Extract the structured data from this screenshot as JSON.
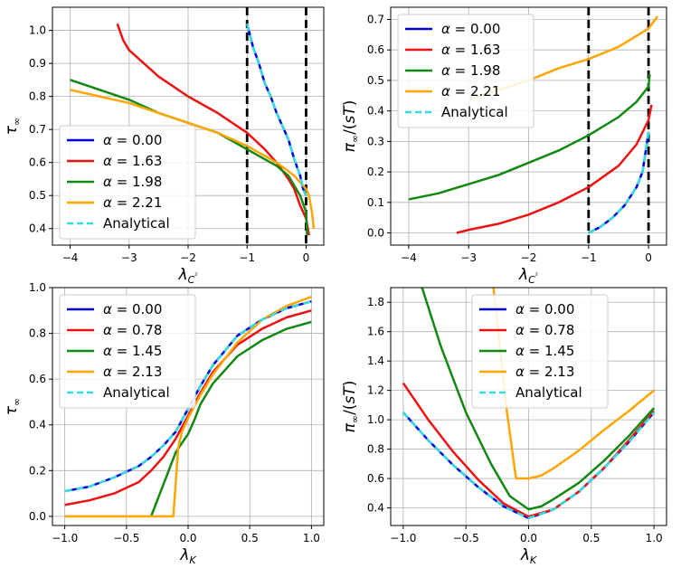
{
  "figure": {
    "layout": "2x2 grid of line charts"
  },
  "chart_data": [
    {
      "type": "line",
      "title": "",
      "xlabel": "λ_{C²}",
      "ylabel": "τ_∞",
      "xlim": [
        -4.3,
        0.3
      ],
      "ylim": [
        0.35,
        1.07
      ],
      "xticks": [
        -4,
        -3,
        -2,
        -1,
        0
      ],
      "xtick_labels": [
        "−4",
        "−3",
        "−2",
        "−1",
        "0"
      ],
      "yticks": [
        0.4,
        0.5,
        0.6,
        0.7,
        0.8,
        0.9,
        1.0
      ],
      "ytick_labels": [
        "0.4",
        "0.5",
        "0.6",
        "0.7",
        "0.8",
        "0.9",
        "1.0"
      ],
      "grid": true,
      "legend_position": "lower-left",
      "vlines": [
        -1,
        0
      ],
      "series": [
        {
          "name": "α = 0.00",
          "color": "#0000dd",
          "dash": "solid",
          "x": [
            -1.0,
            -0.9,
            -0.8,
            -0.7,
            -0.6,
            -0.5,
            -0.4,
            -0.3,
            -0.2,
            -0.1,
            -0.05,
            0.0
          ],
          "y": [
            1.02,
            0.95,
            0.9,
            0.84,
            0.8,
            0.75,
            0.71,
            0.67,
            0.61,
            0.56,
            0.52,
            0.5
          ]
        },
        {
          "name": "α = 1.63",
          "color": "#ee1111",
          "dash": "solid",
          "x": [
            -3.2,
            -3.1,
            -3.0,
            -2.5,
            -2.0,
            -1.5,
            -1.0,
            -0.7,
            -0.5,
            -0.3,
            -0.2,
            -0.1,
            0.0,
            0.05
          ],
          "y": [
            1.02,
            0.97,
            0.94,
            0.86,
            0.8,
            0.75,
            0.69,
            0.64,
            0.6,
            0.55,
            0.52,
            0.47,
            0.43,
            0.38
          ]
        },
        {
          "name": "α = 1.98",
          "color": "#118811",
          "dash": "solid",
          "x": [
            -4.0,
            -3.5,
            -3.0,
            -2.5,
            -2.0,
            -1.5,
            -1.0,
            -0.7,
            -0.5,
            -0.3,
            -0.2,
            -0.1,
            0.0,
            0.02
          ],
          "y": [
            0.85,
            0.82,
            0.79,
            0.75,
            0.72,
            0.69,
            0.64,
            0.61,
            0.59,
            0.56,
            0.53,
            0.5,
            0.45,
            0.38
          ]
        },
        {
          "name": "α = 2.21",
          "color": "#ffa500",
          "dash": "solid",
          "x": [
            -4.0,
            -3.5,
            -3.0,
            -2.5,
            -2.0,
            -1.5,
            -1.0,
            -0.5,
            -0.2,
            0.0,
            0.05,
            0.1,
            0.13
          ],
          "y": [
            0.82,
            0.8,
            0.78,
            0.75,
            0.72,
            0.69,
            0.65,
            0.6,
            0.56,
            0.52,
            0.5,
            0.45,
            0.4
          ]
        },
        {
          "name": "Analytical",
          "color": "#33dddd",
          "dash": "dashed",
          "x": [
            -1.0,
            -0.9,
            -0.8,
            -0.7,
            -0.6,
            -0.5,
            -0.4,
            -0.3,
            -0.2,
            -0.1,
            -0.05,
            0.0
          ],
          "y": [
            1.02,
            0.95,
            0.9,
            0.84,
            0.8,
            0.75,
            0.71,
            0.67,
            0.61,
            0.56,
            0.52,
            0.5
          ]
        }
      ]
    },
    {
      "type": "line",
      "title": "",
      "xlabel": "λ_{C²}",
      "ylabel": "π_∞/(sT)",
      "xlim": [
        -4.3,
        0.3
      ],
      "ylim": [
        -0.04,
        0.74
      ],
      "xticks": [
        -4,
        -3,
        -2,
        -1,
        0
      ],
      "xtick_labels": [
        "−4",
        "−3",
        "−2",
        "−1",
        "0"
      ],
      "yticks": [
        0.0,
        0.1,
        0.2,
        0.3,
        0.4,
        0.5,
        0.6,
        0.7
      ],
      "ytick_labels": [
        "0.0",
        "0.1",
        "0.2",
        "0.3",
        "0.4",
        "0.5",
        "0.6",
        "0.7"
      ],
      "grid": true,
      "legend_position": "upper-left",
      "vlines": [
        -1,
        0
      ],
      "series": [
        {
          "name": "α = 0.00",
          "color": "#0000dd",
          "dash": "solid",
          "x": [
            -1.0,
            -0.8,
            -0.6,
            -0.4,
            -0.2,
            -0.1,
            0.0
          ],
          "y": [
            0.0,
            0.02,
            0.05,
            0.09,
            0.15,
            0.2,
            0.33
          ]
        },
        {
          "name": "α = 1.63",
          "color": "#ee1111",
          "dash": "solid",
          "x": [
            -3.2,
            -3.0,
            -2.5,
            -2.0,
            -1.5,
            -1.0,
            -0.5,
            -0.2,
            0.0,
            0.05
          ],
          "y": [
            0.0,
            0.01,
            0.03,
            0.06,
            0.1,
            0.15,
            0.22,
            0.29,
            0.37,
            0.42
          ]
        },
        {
          "name": "α = 1.98",
          "color": "#118811",
          "dash": "solid",
          "x": [
            -4.0,
            -3.5,
            -3.0,
            -2.5,
            -2.0,
            -1.5,
            -1.0,
            -0.5,
            -0.2,
            0.0,
            0.02
          ],
          "y": [
            0.11,
            0.13,
            0.16,
            0.19,
            0.23,
            0.27,
            0.32,
            0.38,
            0.43,
            0.48,
            0.52
          ]
        },
        {
          "name": "α = 2.21",
          "color": "#ffa500",
          "dash": "solid",
          "x": [
            -3.0,
            -2.5,
            -2.0,
            -1.5,
            -1.0,
            -0.5,
            0.0,
            0.15
          ],
          "y": [
            0.44,
            0.47,
            0.5,
            0.54,
            0.57,
            0.61,
            0.67,
            0.71
          ]
        },
        {
          "name": "Analytical",
          "color": "#33dddd",
          "dash": "dashed",
          "x": [
            -1.0,
            -0.8,
            -0.6,
            -0.4,
            -0.2,
            -0.1,
            0.0
          ],
          "y": [
            0.0,
            0.02,
            0.05,
            0.09,
            0.15,
            0.2,
            0.33
          ]
        }
      ]
    },
    {
      "type": "line",
      "title": "",
      "xlabel": "λ_K",
      "ylabel": "τ_∞",
      "xlim": [
        -1.1,
        1.1
      ],
      "ylim": [
        -0.04,
        1.0
      ],
      "xticks": [
        -1.0,
        -0.5,
        0.0,
        0.5,
        1.0
      ],
      "xtick_labels": [
        "−1.0",
        "−0.5",
        "0.0",
        "0.5",
        "1.0"
      ],
      "yticks": [
        0.0,
        0.2,
        0.4,
        0.6,
        0.8,
        1.0
      ],
      "ytick_labels": [
        "0.0",
        "0.2",
        "0.4",
        "0.6",
        "0.8",
        "1.0"
      ],
      "grid": true,
      "legend_position": "upper-left",
      "vlines": [],
      "series": [
        {
          "name": "α = 0.00",
          "color": "#0000dd",
          "dash": "solid",
          "x": [
            -1.0,
            -0.8,
            -0.6,
            -0.4,
            -0.3,
            -0.2,
            -0.1,
            0.0,
            0.1,
            0.2,
            0.4,
            0.6,
            0.8,
            1.0
          ],
          "y": [
            0.11,
            0.13,
            0.17,
            0.22,
            0.26,
            0.31,
            0.37,
            0.47,
            0.57,
            0.66,
            0.79,
            0.86,
            0.91,
            0.94
          ]
        },
        {
          "name": "α = 0.78",
          "color": "#ee1111",
          "dash": "solid",
          "x": [
            -1.0,
            -0.8,
            -0.6,
            -0.4,
            -0.3,
            -0.2,
            -0.1,
            0.0,
            0.1,
            0.2,
            0.4,
            0.6,
            0.8,
            1.0
          ],
          "y": [
            0.05,
            0.07,
            0.1,
            0.15,
            0.2,
            0.26,
            0.34,
            0.44,
            0.54,
            0.63,
            0.75,
            0.82,
            0.87,
            0.9
          ]
        },
        {
          "name": "α = 1.45",
          "color": "#118811",
          "dash": "solid",
          "x": [
            -0.3,
            -0.2,
            -0.1,
            -0.05,
            0.0,
            0.05,
            0.1,
            0.2,
            0.4,
            0.6,
            0.8,
            1.0
          ],
          "y": [
            0.0,
            0.14,
            0.28,
            0.32,
            0.36,
            0.42,
            0.49,
            0.58,
            0.7,
            0.77,
            0.82,
            0.85
          ]
        },
        {
          "name": "α = 2.13",
          "color": "#ffa500",
          "dash": "solid",
          "x": [
            -1.0,
            -0.5,
            -0.12,
            -0.1,
            -0.08,
            -0.05,
            0.0,
            0.1,
            0.2,
            0.4,
            0.6,
            0.8,
            1.0
          ],
          "y": [
            0.0,
            0.0,
            0.0,
            0.15,
            0.3,
            0.37,
            0.43,
            0.53,
            0.62,
            0.76,
            0.86,
            0.92,
            0.96
          ]
        },
        {
          "name": "Analytical",
          "color": "#33dddd",
          "dash": "dashed",
          "x": [
            -1.0,
            -0.8,
            -0.6,
            -0.4,
            -0.3,
            -0.2,
            -0.1,
            0.0,
            0.1,
            0.2,
            0.4,
            0.6,
            0.8,
            1.0
          ],
          "y": [
            0.11,
            0.13,
            0.17,
            0.22,
            0.26,
            0.31,
            0.37,
            0.47,
            0.57,
            0.66,
            0.79,
            0.86,
            0.91,
            0.94
          ]
        }
      ]
    },
    {
      "type": "line",
      "title": "",
      "xlabel": "λ_K",
      "ylabel": "π_∞/(sT)",
      "xlim": [
        -1.1,
        1.1
      ],
      "ylim": [
        0.28,
        1.9
      ],
      "xticks": [
        -1.0,
        -0.5,
        0.0,
        0.5,
        1.0
      ],
      "xtick_labels": [
        "−1.0",
        "−0.5",
        "0.0",
        "0.5",
        "1.0"
      ],
      "yticks": [
        0.4,
        0.6,
        0.8,
        1.0,
        1.2,
        1.4,
        1.6,
        1.8
      ],
      "ytick_labels": [
        "0.4",
        "0.6",
        "0.8",
        "1.0",
        "1.2",
        "1.4",
        "1.6",
        "1.8"
      ],
      "grid": true,
      "legend_position": "upper-center",
      "vlines": [],
      "series": [
        {
          "name": "α = 0.00",
          "color": "#0000dd",
          "dash": "solid",
          "x": [
            -1.0,
            -0.8,
            -0.6,
            -0.4,
            -0.2,
            0.0,
            0.2,
            0.4,
            0.6,
            0.8,
            1.0
          ],
          "y": [
            1.05,
            0.86,
            0.69,
            0.54,
            0.41,
            0.33,
            0.39,
            0.51,
            0.67,
            0.85,
            1.05
          ]
        },
        {
          "name": "α = 0.78",
          "color": "#ee1111",
          "dash": "solid",
          "x": [
            -1.0,
            -0.8,
            -0.6,
            -0.4,
            -0.2,
            0.0,
            0.2,
            0.4,
            0.6,
            0.8,
            1.0
          ],
          "y": [
            1.25,
            1.0,
            0.78,
            0.59,
            0.43,
            0.34,
            0.39,
            0.51,
            0.67,
            0.86,
            1.06
          ]
        },
        {
          "name": "α = 1.45",
          "color": "#118811",
          "dash": "solid",
          "x": [
            -0.85,
            -0.7,
            -0.5,
            -0.3,
            -0.15,
            0.0,
            0.1,
            0.2,
            0.4,
            0.6,
            0.8,
            1.0
          ],
          "y": [
            1.9,
            1.5,
            1.05,
            0.7,
            0.48,
            0.39,
            0.41,
            0.46,
            0.57,
            0.72,
            0.89,
            1.08
          ]
        },
        {
          "name": "α = 2.13",
          "color": "#ffa500",
          "dash": "solid",
          "x": [
            -0.28,
            -0.23,
            -0.18,
            -0.14,
            -0.12,
            -0.1,
            -0.05,
            0.0,
            0.1,
            0.2,
            0.4,
            0.6,
            0.8,
            1.0
          ],
          "y": [
            1.9,
            1.5,
            1.1,
            0.85,
            0.72,
            0.6,
            0.6,
            0.6,
            0.62,
            0.67,
            0.79,
            0.93,
            1.06,
            1.2
          ]
        },
        {
          "name": "Analytical",
          "color": "#33dddd",
          "dash": "dashed",
          "x": [
            -1.0,
            -0.8,
            -0.6,
            -0.4,
            -0.2,
            0.0,
            0.2,
            0.4,
            0.6,
            0.8,
            1.0
          ],
          "y": [
            1.05,
            0.86,
            0.69,
            0.54,
            0.41,
            0.33,
            0.39,
            0.51,
            0.67,
            0.85,
            1.05
          ]
        }
      ]
    }
  ]
}
